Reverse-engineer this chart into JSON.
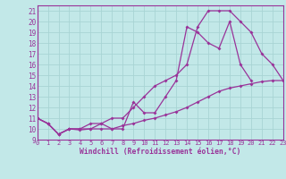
{
  "xlabel": "Windchill (Refroidissement éolien,°C)",
  "xlim": [
    0,
    23
  ],
  "ylim": [
    9,
    21.5
  ],
  "bg_color": "#c2e8e8",
  "line_color": "#993399",
  "grid_color": "#a8d4d4",
  "series": [
    {
      "x": [
        0,
        1,
        2,
        3,
        4,
        5,
        6,
        7,
        8,
        9,
        10,
        11,
        12,
        13,
        14,
        15,
        16,
        17,
        18,
        19,
        20,
        21,
        22,
        23
      ],
      "y": [
        11,
        10.5,
        9.5,
        10,
        10,
        10.5,
        10.5,
        11,
        11,
        12,
        13,
        14,
        14.5,
        15,
        16,
        19.5,
        21,
        21,
        21,
        20,
        19,
        17,
        16,
        14.5
      ]
    },
    {
      "x": [
        0,
        1,
        2,
        3,
        4,
        5,
        6,
        7,
        8,
        9,
        10,
        11,
        12,
        13,
        14,
        15,
        16,
        17,
        18,
        19,
        20,
        21
      ],
      "y": [
        11,
        10.5,
        9.5,
        10,
        10,
        10,
        10.5,
        10,
        10,
        12.5,
        11.5,
        11.5,
        13,
        14.5,
        19.5,
        19,
        18,
        17.5,
        20,
        16,
        14.5,
        null
      ]
    },
    {
      "x": [
        0,
        1,
        2,
        3,
        4,
        5,
        6,
        7,
        8,
        9,
        10,
        11,
        12,
        13,
        14,
        15,
        16,
        17,
        18,
        19,
        20,
        21,
        22,
        23
      ],
      "y": [
        11,
        10.5,
        9.5,
        10,
        9.9,
        10,
        10,
        10,
        10.3,
        10.5,
        10.8,
        11.0,
        11.3,
        11.6,
        12,
        12.5,
        13,
        13.5,
        13.8,
        14,
        14.2,
        14.4,
        14.5,
        14.5
      ]
    }
  ]
}
